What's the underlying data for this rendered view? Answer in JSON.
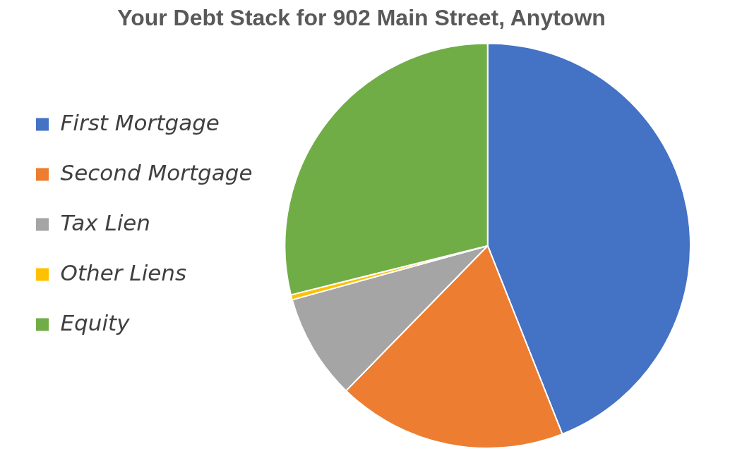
{
  "chart_data": {
    "type": "pie",
    "title": "Your Debt Stack for 902 Main Street, Anytown",
    "categories": [
      "First Mortgage",
      "Second Mortgage",
      "Tax Lien",
      "Other Liens",
      "Equity"
    ],
    "values": [
      44,
      18.3,
      8.4,
      0.4,
      28.9
    ],
    "colors": [
      "#4472c4",
      "#ed7d31",
      "#a5a5a5",
      "#ffc000",
      "#70ad47"
    ],
    "legend": "left"
  }
}
